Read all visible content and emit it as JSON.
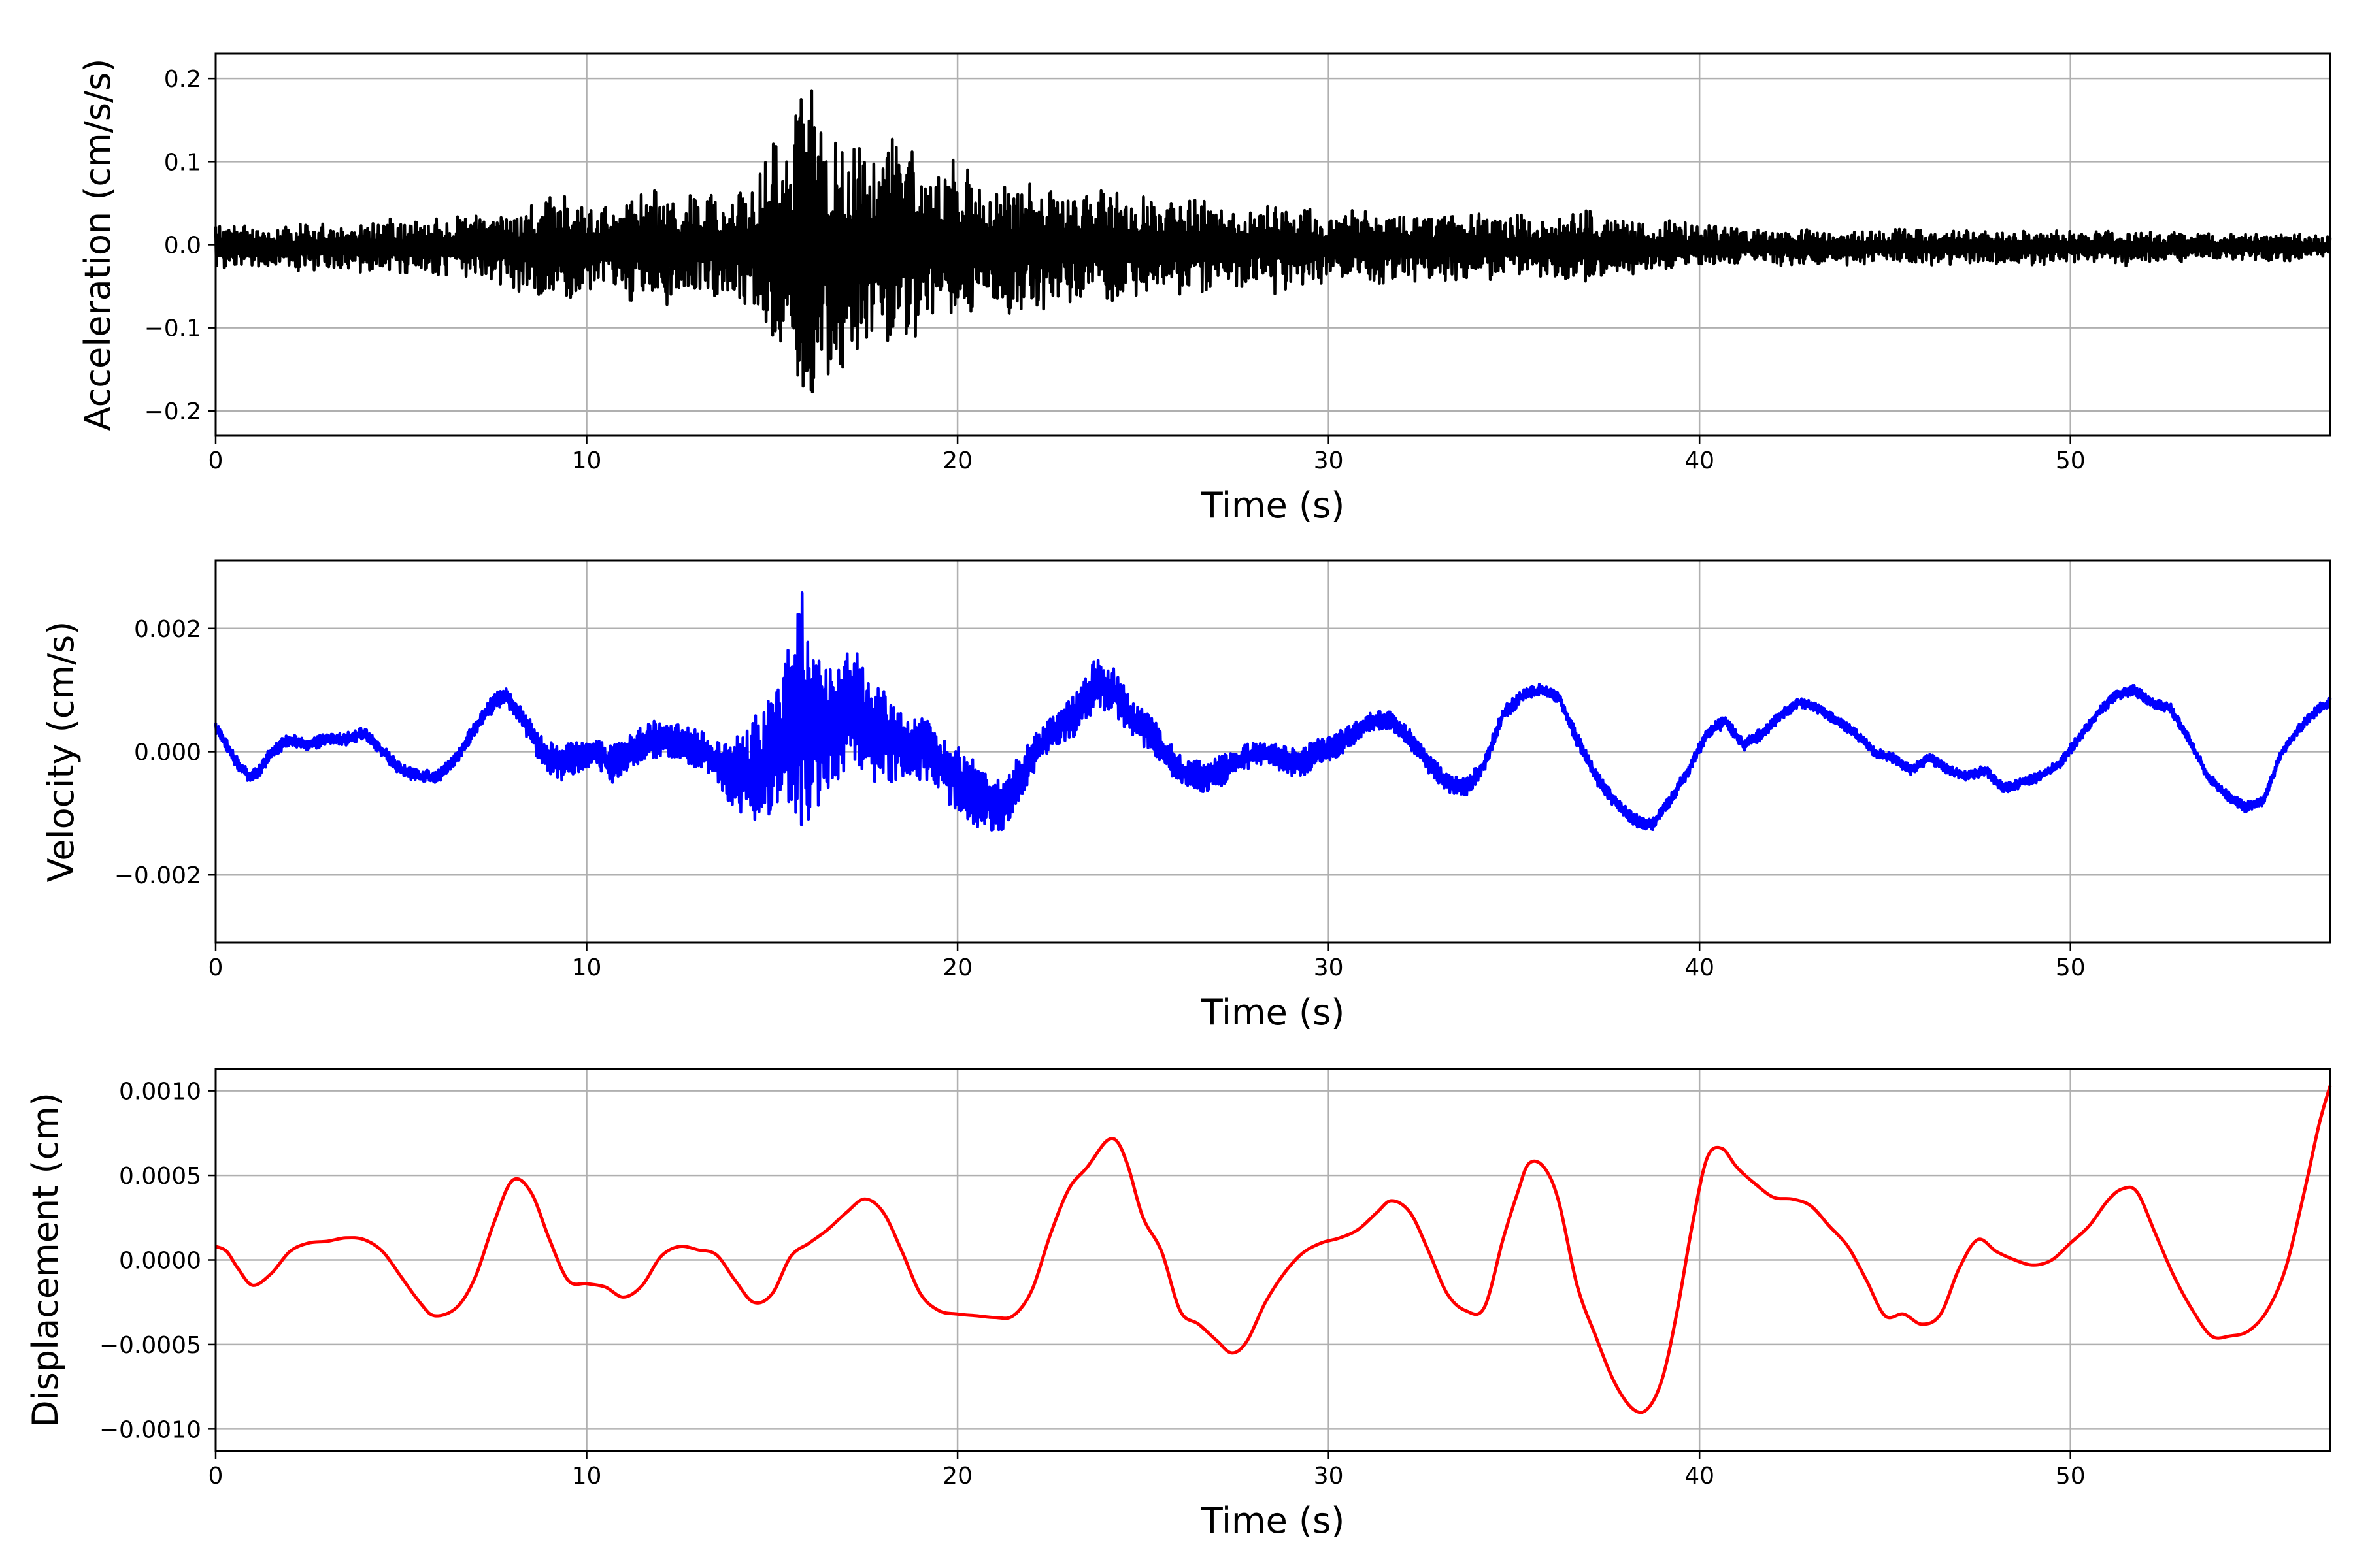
{
  "chart_data": [
    {
      "type": "line",
      "ylabel": "Acceleration (cm/s/s)",
      "xlabel": "Time (s)",
      "xlim": [
        0,
        57
      ],
      "ylim": [
        -0.23,
        0.23
      ],
      "xticks": [
        0,
        10,
        20,
        30,
        40,
        50
      ],
      "xtick_labels": [
        "0",
        "10",
        "20",
        "30",
        "40",
        "50"
      ],
      "yticks": [
        0.2,
        0.1,
        0.0,
        -0.1,
        -0.2
      ],
      "ytick_labels": [
        "0.2",
        "0.1",
        "0.0",
        "−0.1",
        "−0.2"
      ],
      "grid": true,
      "color": "#000000",
      "series": [
        {
          "x": [
            0,
            0.5,
            1,
            1.5,
            2,
            2.5,
            3,
            3.5,
            4,
            4.5,
            5,
            5.5,
            6,
            6.5,
            7,
            7.5,
            8,
            8.5,
            9,
            9.5,
            10,
            10.5,
            11,
            11.5,
            12,
            12.5,
            13,
            13.5,
            14,
            14.5,
            15,
            15.3,
            15.6,
            15.8,
            16,
            16.2,
            16.5,
            17,
            17.5,
            18,
            18.5,
            19,
            19.5,
            20,
            20.3,
            20.5,
            21,
            21.5,
            22,
            22.5,
            23,
            23.5,
            24,
            24.5,
            25,
            25.5,
            26,
            26.5,
            27,
            27.5,
            28,
            28.5,
            29,
            29.5,
            30,
            30.5,
            31,
            31.5,
            32,
            32.5,
            33,
            33.5,
            34,
            34.5,
            35,
            35.5,
            36,
            36.5,
            37,
            37.5,
            38,
            38.5,
            39,
            39.5,
            40,
            40.5,
            41,
            41.5,
            42,
            42.5,
            43,
            43.5,
            44,
            44.5,
            45,
            45.5,
            46,
            46.5,
            47,
            47.5,
            48,
            48.5,
            49,
            49.5,
            50,
            50.5,
            51,
            51.5,
            52,
            52.5,
            53,
            53.5,
            54,
            54.5,
            55,
            55.5,
            56,
            56.5,
            57
          ],
          "envelope": [
            0.025,
            0.025,
            0.025,
            0.025,
            0.025,
            0.027,
            0.027,
            0.028,
            0.028,
            0.03,
            0.03,
            0.03,
            0.032,
            0.035,
            0.035,
            0.04,
            0.045,
            0.05,
            0.055,
            0.06,
            0.05,
            0.055,
            0.065,
            0.06,
            0.07,
            0.06,
            0.06,
            0.06,
            0.06,
            0.08,
            0.11,
            0.12,
            0.15,
            0.21,
            0.2,
            0.15,
            0.16,
            0.13,
            0.12,
            0.11,
            0.13,
            0.09,
            0.085,
            0.1,
            0.09,
            0.075,
            0.07,
            0.08,
            0.07,
            0.07,
            0.065,
            0.06,
            0.065,
            0.055,
            0.06,
            0.05,
            0.055,
            0.05,
            0.05,
            0.045,
            0.045,
            0.05,
            0.055,
            0.045,
            0.04,
            0.04,
            0.04,
            0.04,
            0.04,
            0.04,
            0.035,
            0.04,
            0.04,
            0.035,
            0.035,
            0.035,
            0.035,
            0.04,
            0.045,
            0.035,
            0.03,
            0.03,
            0.03,
            0.028,
            0.025,
            0.025,
            0.022,
            0.02,
            0.02,
            0.02,
            0.02,
            0.02,
            0.02,
            0.02,
            0.018,
            0.02,
            0.02,
            0.018,
            0.02,
            0.02,
            0.018,
            0.018,
            0.02,
            0.018,
            0.018,
            0.018,
            0.02,
            0.02,
            0.018,
            0.015,
            0.018,
            0.015,
            0.015,
            0.015,
            0.015,
            0.015,
            0.015,
            0.013,
            0.012
          ]
        }
      ]
    },
    {
      "type": "line",
      "ylabel": "Velocity (cm/s)",
      "xlabel": "Time (s)",
      "xlim": [
        0,
        57
      ],
      "ylim": [
        -0.0031,
        0.0031
      ],
      "xticks": [
        0,
        10,
        20,
        30,
        40,
        50
      ],
      "xtick_labels": [
        "0",
        "10",
        "20",
        "30",
        "40",
        "50"
      ],
      "yticks": [
        0.002,
        0.0,
        -0.002
      ],
      "ytick_labels": [
        "0.002",
        "0.000",
        "−0.002"
      ],
      "grid": true,
      "color": "#0000ff",
      "series": [
        {
          "x": [
            0,
            0.3,
            0.6,
            0.9,
            1.2,
            1.5,
            2,
            2.5,
            3,
            3.5,
            4,
            4.5,
            5,
            5.5,
            6,
            6.5,
            7,
            7.5,
            7.8,
            8.2,
            8.8,
            9.2,
            9.7,
            10.2,
            10.7,
            11.2,
            11.7,
            12.2,
            12.7,
            13.2,
            13.7,
            14.2,
            14.7,
            15.2,
            15.6,
            15.8,
            16.2,
            16.7,
            17.2,
            17.7,
            18.2,
            18.7,
            19.2,
            19.7,
            20.2,
            20.7,
            21.2,
            21.7,
            22.2,
            22.7,
            23.2,
            23.7,
            24.2,
            24.7,
            25.2,
            25.7,
            26.2,
            26.7,
            27.2,
            27.7,
            28.2,
            28.7,
            29.2,
            29.7,
            30.2,
            30.7,
            31.2,
            31.7,
            32.2,
            32.7,
            33.2,
            33.7,
            34.2,
            34.7,
            35.2,
            35.7,
            36.2,
            36.7,
            37.2,
            37.7,
            38.2,
            38.7,
            39.2,
            39.7,
            40.2,
            40.7,
            41.2,
            41.7,
            42.2,
            42.7,
            43.2,
            43.7,
            44.2,
            44.7,
            45.2,
            45.7,
            46.2,
            46.7,
            47.2,
            47.7,
            48.2,
            48.7,
            49.2,
            49.7,
            50.2,
            50.7,
            51.2,
            51.7,
            52.2,
            52.7,
            53.2,
            53.7,
            54.2,
            54.7,
            55.2,
            55.7,
            56.2,
            56.7,
            57
          ],
          "mean": [
            0.0004,
            0.0001,
            -0.0002,
            -0.0004,
            -0.0003,
            0.0,
            0.0002,
            0.0001,
            0.0002,
            0.0002,
            0.0003,
            0.0,
            -0.0003,
            -0.0004,
            -0.0004,
            -0.0001,
            0.0004,
            0.0008,
            0.0009,
            0.0006,
            0.0,
            -0.0002,
            -0.0001,
            0.0,
            -0.0002,
            0.0,
            0.0002,
            0.0002,
            0.0001,
            0.0,
            -0.0003,
            -0.0004,
            -0.0002,
            0.0001,
            0.0006,
            0.0006,
            0.0003,
            0.0004,
            0.0008,
            0.0003,
            0.0002,
            0.0001,
            0.0,
            -0.0003,
            -0.0006,
            -0.0008,
            -0.0009,
            -0.0004,
            0.0001,
            0.0004,
            0.0006,
            0.0011,
            0.001,
            0.0005,
            0.0003,
            -0.0001,
            -0.0004,
            -0.0004,
            -0.0003,
            -0.0001,
            0.0,
            -0.0001,
            -0.0002,
            0.0,
            0.0001,
            0.0003,
            0.0005,
            0.0005,
            0.0002,
            -0.0002,
            -0.0005,
            -0.0006,
            -0.0002,
            0.0006,
            0.0009,
            0.001,
            0.0009,
            0.0002,
            -0.0004,
            -0.0008,
            -0.0011,
            -0.0012,
            -0.0008,
            -0.0003,
            0.0003,
            0.0005,
            0.0001,
            0.0003,
            0.0006,
            0.0008,
            0.0007,
            0.0005,
            0.0003,
            0.0,
            -0.0001,
            -0.0003,
            -0.0001,
            -0.0003,
            -0.0004,
            -0.0003,
            -0.0006,
            -0.0005,
            -0.0004,
            -0.0002,
            0.0002,
            0.0006,
            0.0009,
            0.001,
            0.0008,
            0.0007,
            0.0002,
            -0.0004,
            -0.0007,
            -0.0009,
            -0.0008,
            0.0,
            0.0004,
            0.0007,
            0.0008
          ],
          "noise": [
            0.0001,
            0.0001,
            0.0001,
            0.0001,
            0.0001,
            0.0001,
            0.0001,
            0.0001,
            0.0001,
            0.0001,
            0.0001,
            0.0001,
            0.0001,
            0.0001,
            0.0001,
            0.0001,
            0.00012,
            0.00015,
            0.00015,
            0.00015,
            0.00025,
            0.0003,
            0.00025,
            0.0002,
            0.0003,
            0.0003,
            0.0003,
            0.0003,
            0.0003,
            0.0003,
            0.0004,
            0.0007,
            0.0009,
            0.001,
            0.0015,
            0.002,
            0.0012,
            0.001,
            0.0009,
            0.0008,
            0.0007,
            0.0005,
            0.0005,
            0.0005,
            0.0006,
            0.0005,
            0.0004,
            0.0004,
            0.0003,
            0.0003,
            0.00035,
            0.0004,
            0.0004,
            0.0003,
            0.0003,
            0.00025,
            0.00025,
            0.00025,
            0.00025,
            0.0002,
            0.0002,
            0.0002,
            0.00025,
            0.0002,
            0.0002,
            0.00018,
            0.00015,
            0.00015,
            0.00015,
            0.00015,
            0.00015,
            0.00015,
            0.00012,
            0.00012,
            0.0001,
            0.0001,
            0.0001,
            0.00012,
            0.00012,
            0.0001,
            0.0001,
            0.0001,
            0.0001,
            0.0001,
            0.0001,
            0.0001,
            0.0001,
            0.0001,
            8e-05,
            8e-05,
            8e-05,
            8e-05,
            8e-05,
            8e-05,
            8e-05,
            8e-05,
            8e-05,
            8e-05,
            8e-05,
            8e-05,
            8e-05,
            8e-05,
            8e-05,
            8e-05,
            8e-05,
            8e-05,
            8e-05,
            8e-05,
            8e-05,
            8e-05,
            8e-05,
            8e-05,
            8e-05,
            8e-05,
            8e-05,
            8e-05,
            8e-05,
            8e-05,
            8e-05
          ]
        }
      ]
    },
    {
      "type": "line",
      "ylabel": "Displacement (cm)",
      "xlabel": "Time (s)",
      "xlim": [
        0,
        57
      ],
      "ylim": [
        -0.00113,
        0.00113
      ],
      "xticks": [
        0,
        10,
        20,
        30,
        40,
        50
      ],
      "xtick_labels": [
        "0",
        "10",
        "20",
        "30",
        "40",
        "50"
      ],
      "yticks": [
        0.001,
        0.0005,
        0.0,
        -0.0005,
        -0.001
      ],
      "ytick_labels": [
        "0.0010",
        "0.0005",
        "0.0000",
        "−0.0005",
        "−0.0010"
      ],
      "grid": true,
      "color": "#ff0000",
      "series": [
        {
          "x": [
            0,
            0.3,
            0.6,
            1.0,
            1.5,
            2.0,
            2.5,
            3.0,
            3.5,
            4.0,
            4.5,
            5.0,
            5.5,
            5.9,
            6.5,
            7.0,
            7.5,
            8.0,
            8.5,
            9.0,
            9.5,
            10.0,
            10.5,
            11.0,
            11.5,
            12.0,
            12.5,
            13.0,
            13.5,
            14.0,
            14.5,
            15.0,
            15.5,
            16.0,
            16.5,
            17.0,
            17.5,
            18.0,
            18.5,
            19.0,
            19.5,
            20.0,
            20.5,
            21.0,
            21.5,
            22.0,
            22.5,
            23.0,
            23.5,
            24.0,
            24.3,
            24.6,
            25.0,
            25.5,
            26.0,
            26.5,
            27.0,
            27.4,
            27.8,
            28.3,
            28.8,
            29.3,
            29.8,
            30.3,
            30.8,
            31.3,
            31.7,
            32.2,
            32.7,
            33.2,
            33.7,
            34.2,
            34.7,
            35.1,
            35.4,
            35.8,
            36.2,
            36.7,
            37.2,
            37.7,
            38.2,
            38.6,
            39.0,
            39.4,
            39.8,
            40.2,
            40.6,
            41.0,
            41.5,
            42.0,
            42.5,
            43.0,
            43.5,
            44.0,
            44.5,
            45.0,
            45.5,
            46.0,
            46.5,
            47.0,
            47.5,
            48.0,
            48.5,
            49.0,
            49.5,
            50.0,
            50.5,
            51.0,
            51.4,
            51.8,
            52.3,
            52.8,
            53.3,
            53.8,
            54.3,
            54.8,
            55.3,
            55.8,
            56.3,
            56.7,
            57.0
          ],
          "y": [
            8e-05,
            5e-05,
            -5e-05,
            -0.00015,
            -8e-05,
            5e-05,
            0.0001,
            0.00011,
            0.00013,
            0.00012,
            5e-05,
            -0.0001,
            -0.00025,
            -0.00033,
            -0.00028,
            -0.0001,
            0.00022,
            0.00047,
            0.0004,
            0.00012,
            -0.00012,
            -0.00014,
            -0.00016,
            -0.00022,
            -0.00015,
            2e-05,
            8e-05,
            6e-05,
            3e-05,
            -0.00012,
            -0.00025,
            -0.0002,
            2e-05,
            0.0001,
            0.00018,
            0.00028,
            0.00036,
            0.00028,
            5e-05,
            -0.0002,
            -0.0003,
            -0.00032,
            -0.00033,
            -0.00034,
            -0.00033,
            -0.00018,
            0.00015,
            0.00042,
            0.00055,
            0.0007,
            0.0007,
            0.00055,
            0.00025,
            5e-05,
            -0.0003,
            -0.00038,
            -0.00048,
            -0.00055,
            -0.00048,
            -0.00025,
            -8e-05,
            4e-05,
            0.0001,
            0.00013,
            0.00018,
            0.00028,
            0.00035,
            0.00028,
            5e-05,
            -0.0002,
            -0.0003,
            -0.00028,
            0.00012,
            0.0004,
            0.00057,
            0.00055,
            0.00035,
            -0.00015,
            -0.00045,
            -0.00072,
            -0.00088,
            -0.00088,
            -0.0007,
            -0.0003,
            0.0002,
            0.0006,
            0.00066,
            0.00055,
            0.00045,
            0.00037,
            0.00036,
            0.00032,
            0.0002,
            8e-05,
            -0.00012,
            -0.00033,
            -0.00032,
            -0.00038,
            -0.00032,
            -5e-05,
            0.00012,
            5e-05,
            0.0,
            -3e-05,
            0.0,
            0.0001,
            0.0002,
            0.00035,
            0.00042,
            0.0004,
            0.00015,
            -0.0001,
            -0.0003,
            -0.00045,
            -0.00045,
            -0.00042,
            -0.0003,
            -5e-05,
            0.0004,
            0.0008,
            0.00103
          ]
        }
      ]
    }
  ]
}
